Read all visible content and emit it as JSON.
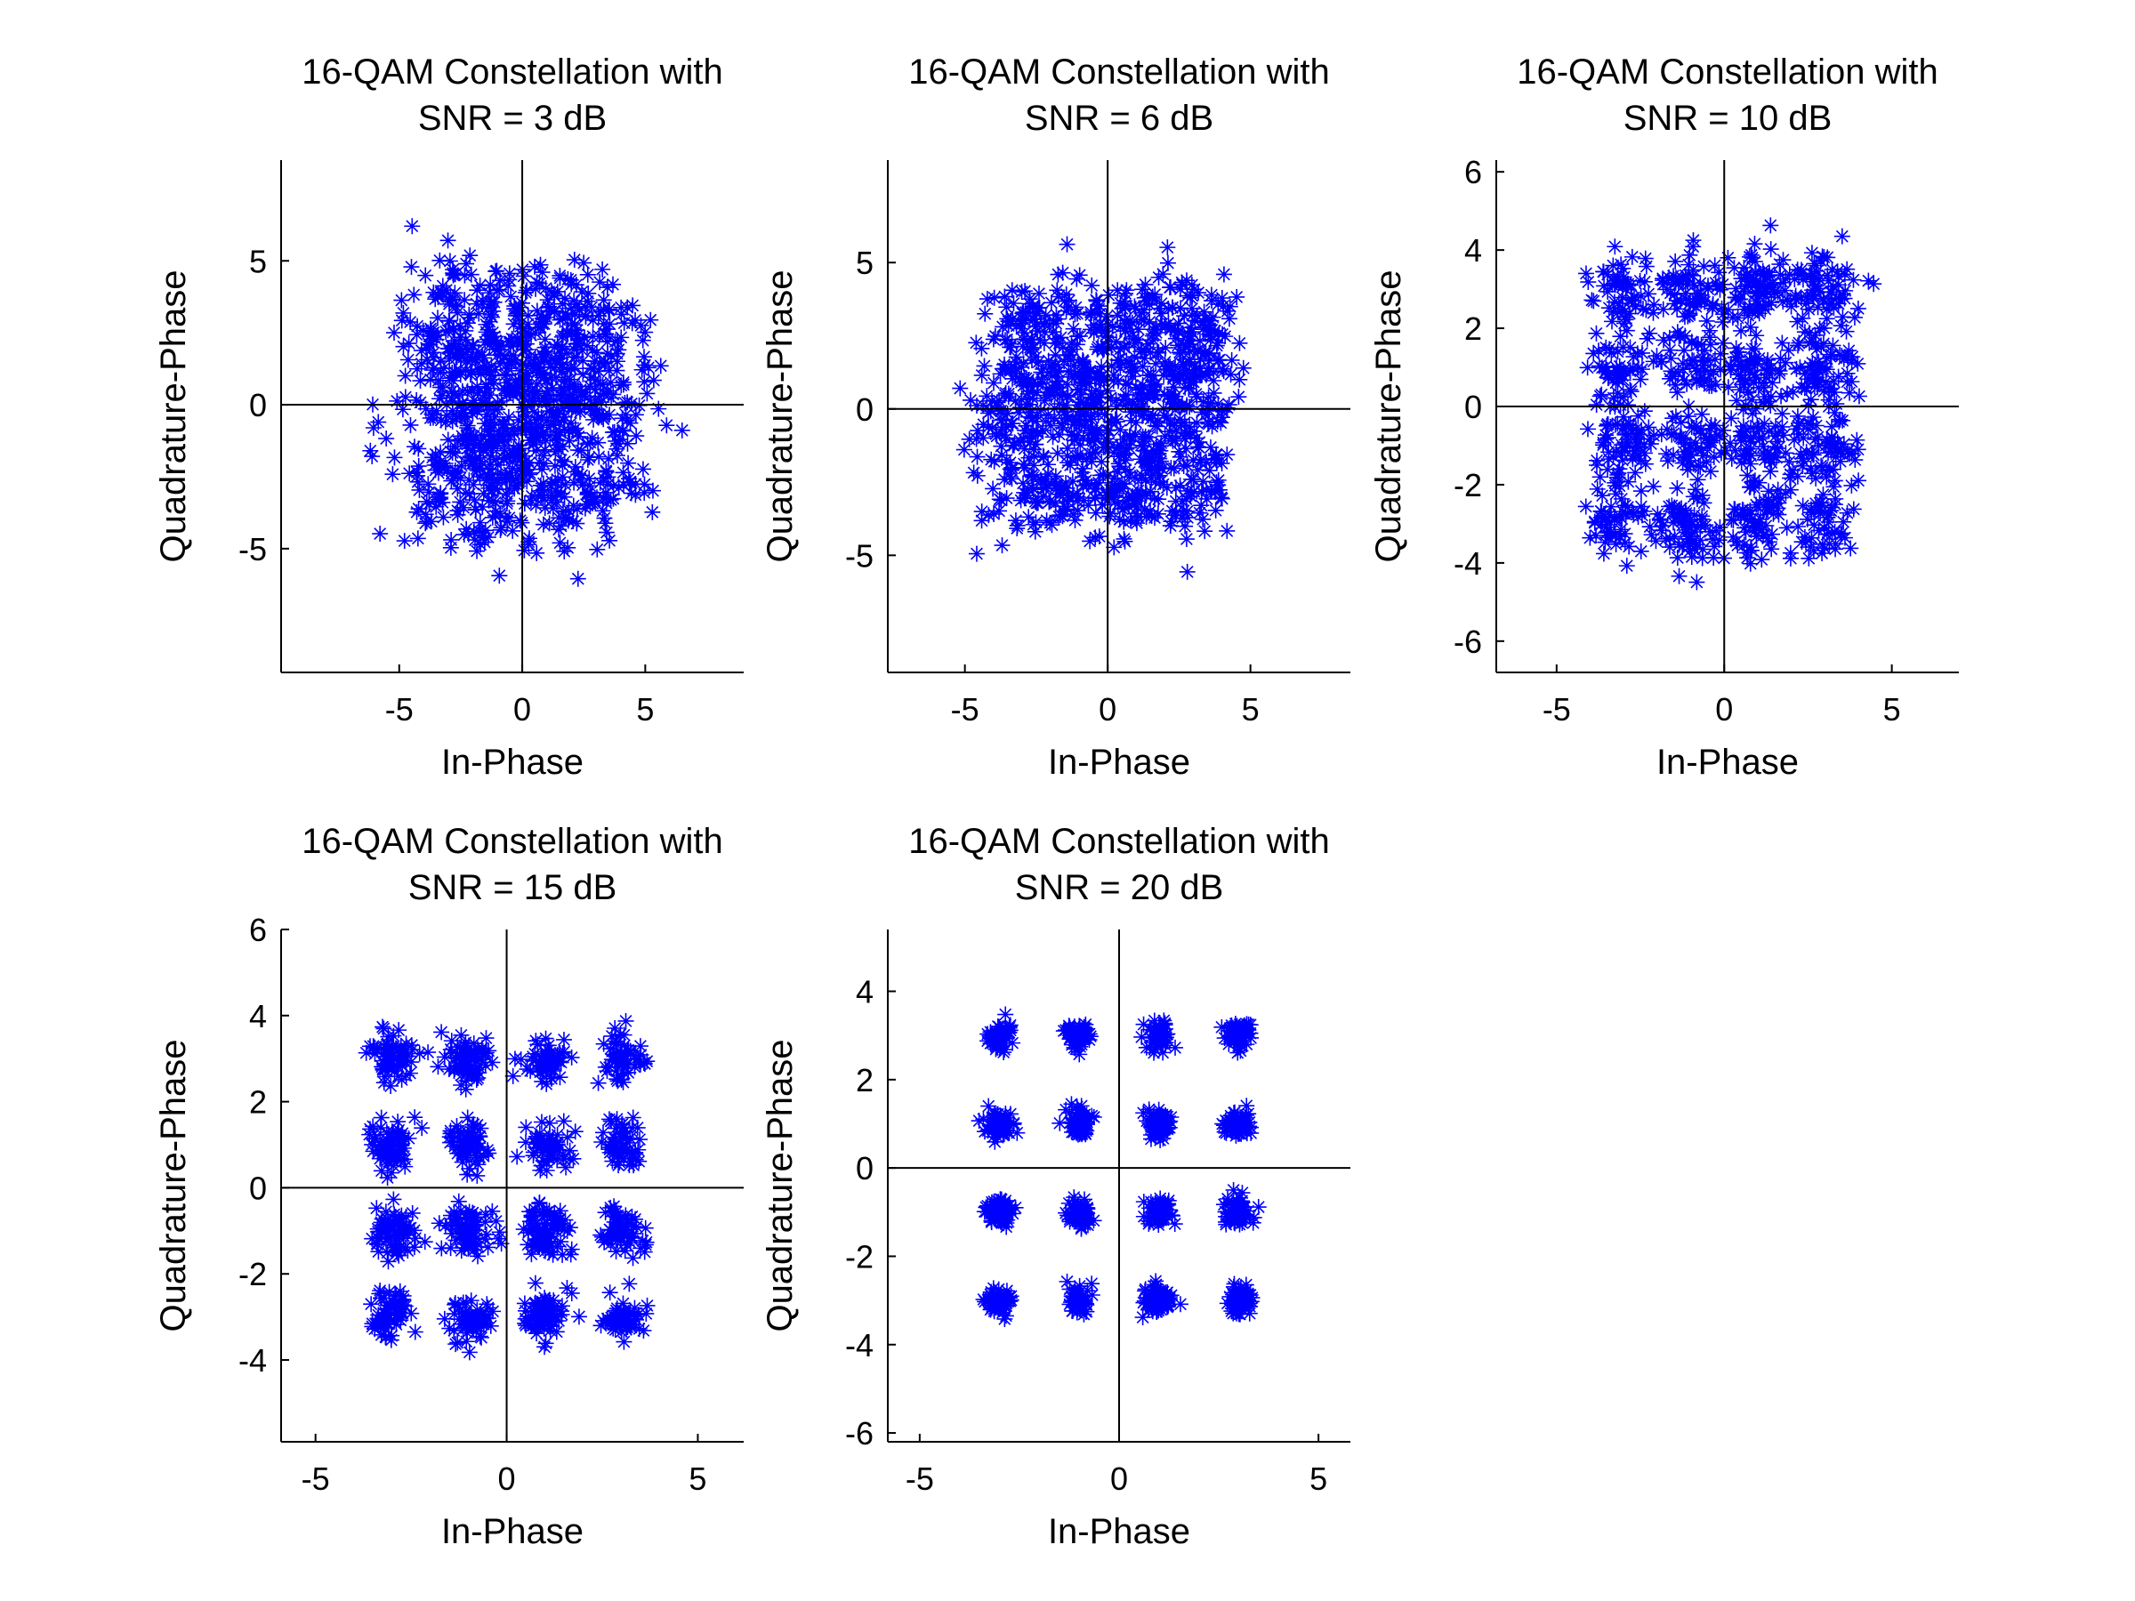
{
  "chart_data": [
    {
      "type": "scatter",
      "title_line1": "16-QAM Constellation with",
      "title_line2": "SNR = 3 dB",
      "xlabel": "In-Phase",
      "ylabel": "Quadrature-Phase",
      "xlim": [
        -9.8,
        9.0
      ],
      "ylim": [
        -9.3,
        8.5
      ],
      "xticks": [
        -5,
        0,
        5
      ],
      "yticks": [
        -5,
        0,
        5
      ],
      "marker": "asterisk",
      "color": "#0000ff",
      "snr_db": 3,
      "point_count": 1000,
      "constellation_levels": [
        -3,
        -1,
        1,
        3
      ]
    },
    {
      "type": "scatter",
      "title_line1": "16-QAM Constellation with",
      "title_line2": "SNR = 6 dB",
      "xlabel": "In-Phase",
      "ylabel": "Quadrature-Phase",
      "xlim": [
        -7.7,
        8.5
      ],
      "ylim": [
        -9.0,
        8.5
      ],
      "xticks": [
        -5,
        0,
        5
      ],
      "yticks": [
        -5,
        0,
        5
      ],
      "marker": "asterisk",
      "color": "#0000ff",
      "snr_db": 6,
      "point_count": 1000,
      "constellation_levels": [
        -3,
        -1,
        1,
        3
      ]
    },
    {
      "type": "scatter",
      "title_line1": "16-QAM Constellation with",
      "title_line2": "SNR = 10 dB",
      "xlabel": "In-Phase",
      "ylabel": "Quadrature-Phase",
      "xlim": [
        -6.8,
        7.0
      ],
      "ylim": [
        -6.8,
        6.3
      ],
      "xticks": [
        -5,
        0,
        5
      ],
      "yticks": [
        -6,
        -4,
        -2,
        0,
        2,
        4,
        6
      ],
      "marker": "asterisk",
      "color": "#0000ff",
      "snr_db": 10,
      "point_count": 1000,
      "constellation_levels": [
        -3,
        -1,
        1,
        3
      ]
    },
    {
      "type": "scatter",
      "title_line1": "16-QAM Constellation with",
      "title_line2": "SNR = 15 dB",
      "xlabel": "In-Phase",
      "ylabel": "Quadrature-Phase",
      "xlim": [
        -5.9,
        6.2
      ],
      "ylim": [
        -5.9,
        6.0
      ],
      "xticks": [
        -5,
        0,
        5
      ],
      "yticks": [
        -4,
        -2,
        0,
        2,
        4,
        6
      ],
      "marker": "asterisk",
      "color": "#0000ff",
      "snr_db": 15,
      "point_count": 1000,
      "constellation_levels": [
        -3,
        -1,
        1,
        3
      ]
    },
    {
      "type": "scatter",
      "title_line1": "16-QAM Constellation with",
      "title_line2": "SNR = 20 dB",
      "xlabel": "In-Phase",
      "ylabel": "Quadrature-Phase",
      "xlim": [
        -5.8,
        5.8
      ],
      "ylim": [
        -6.2,
        5.4
      ],
      "xticks": [
        -5,
        0,
        5
      ],
      "yticks": [
        -6,
        -4,
        -2,
        0,
        2,
        4
      ],
      "marker": "asterisk",
      "color": "#0000ff",
      "snr_db": 20,
      "point_count": 1000,
      "constellation_levels": [
        -3,
        -1,
        1,
        3
      ]
    }
  ]
}
